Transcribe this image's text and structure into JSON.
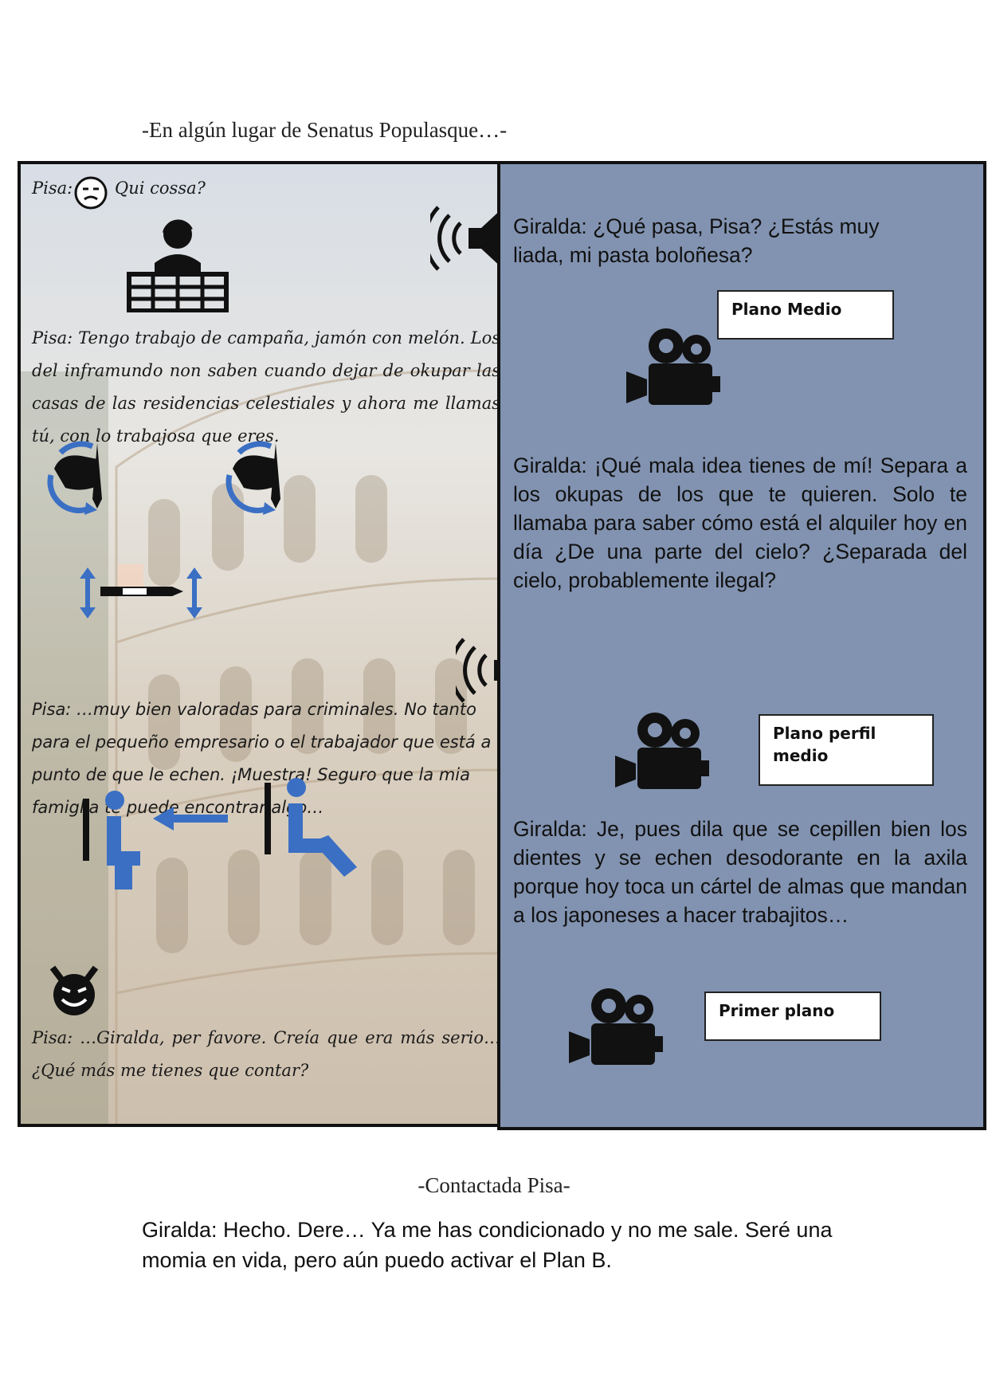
{
  "header": {
    "location": "-En algún lugar de Senatus Populasque…-"
  },
  "left_panel": {
    "line1_speaker": "Pisa:",
    "line1_text": "Qui cossa?",
    "line2": "Pisa: Tengo trabajo de campaña, jamón con melón. Los del inframundo non saben cuando dejar de okupar las casas de las residencias celestiales y ahora me llamas tú, con lo trabajosa que eres.",
    "line3": "Pisa: …muy bien valoradas para criminales. No tanto para el pequeño empresario o el trabajador que está a punto de que le echen. ¡Muestra! Seguro que la mia famiglia te puede encontrar algo…",
    "line4": "Pisa: …Giralda, per favore. Creía que era más serio… ¿Qué más me tienes que contar?"
  },
  "right_panel": {
    "dialog1": "Giralda: ¿Qué pasa, Pisa? ¿Estás muy liada, mi pasta boloñesa?",
    "shot1": "Plano Medio",
    "dialog2": "Giralda: ¡Qué mala idea tienes de mí! Separa a los okupas de los que te quieren. Solo te llamaba para saber cómo está el alquiler hoy en día ¿De una parte del cielo? ¿Separada del cielo, probablemente ilegal?",
    "shot2": "Plano perfil medio",
    "dialog3": "Giralda: Je, pues dila que se cepillen bien los dientes y se echen desodorante en la axila porque hoy toca un cártel de almas que mandan a los japoneses a hacer trabajitos…",
    "shot3": "Primer plano"
  },
  "footer": {
    "scene": "-Contactada Pisa-",
    "closing_line": "Giralda: Hecho. Dere… Ya me has condicionado y no me sale. Seré una momia en vida, pero aún puedo activar el Plan B."
  },
  "colors": {
    "right_panel_bg": "#8293b1",
    "icon_blue": "#3a6fc4",
    "ink": "#111111"
  },
  "icons": [
    "unamused-face-icon",
    "office-worker-desk-icon",
    "speaker-sound-icon",
    "hand-rotate-icon",
    "vertical-arrows-icon",
    "movie-camera-icon",
    "person-seated-icon",
    "left-arrow-icon",
    "devil-face-icon"
  ]
}
